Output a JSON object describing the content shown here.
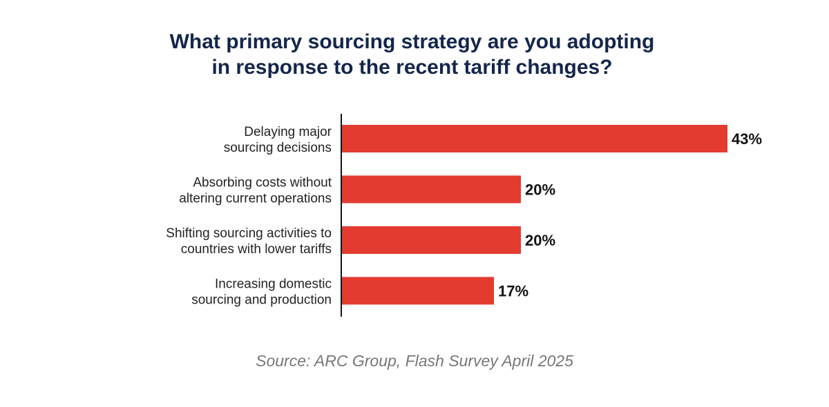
{
  "chart_data": {
    "type": "bar",
    "orientation": "horizontal",
    "title": [
      "What primary sourcing strategy are you adopting",
      "in response to the recent tariff changes?"
    ],
    "categories": [
      [
        "Delaying major",
        "sourcing decisions"
      ],
      [
        "Absorbing costs without",
        "altering current operations"
      ],
      [
        "Shifting sourcing activities to",
        "countries with lower tariffs"
      ],
      [
        "Increasing domestic",
        "sourcing and production"
      ]
    ],
    "values": [
      43,
      20,
      20,
      17
    ],
    "data_labels": [
      "43%",
      "20%",
      "20%",
      "17%"
    ],
    "unit": "%",
    "xlim": [
      0,
      43
    ],
    "grid": false,
    "bar_color": "#e33b30",
    "title_color": "#14264a"
  },
  "source": "Source: ARC Group, Flash Survey April 2025"
}
